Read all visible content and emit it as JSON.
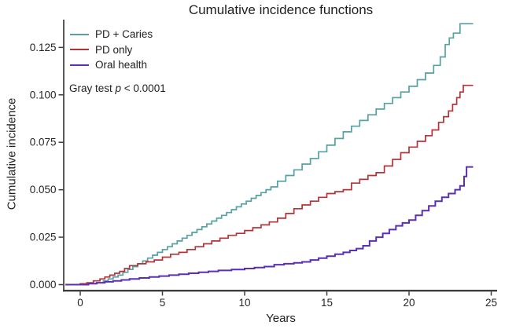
{
  "title": "Cumulative incidence functions",
  "y_axis_label": "Cumulative incidence",
  "x_axis_label": "Years",
  "annotation": {
    "prefix": "Gray test ",
    "stat": "p",
    "suffix": " < 0.0001"
  },
  "legend": {
    "items": [
      {
        "label": "PD + Caries",
        "color": "#55a1a3"
      },
      {
        "label": "PD only",
        "color": "#b23439"
      },
      {
        "label": "Oral health",
        "color": "#5b2fb5"
      }
    ]
  },
  "axis_color": "#3d3d3d",
  "tick_text_color": "#262626",
  "chart_data": {
    "type": "line",
    "subtype": "step-cumulative-incidence",
    "title": "Cumulative incidence functions",
    "xlabel": "Years",
    "ylabel": "Cumulative incidence",
    "x_ticks": [
      0,
      5,
      10,
      15,
      20,
      25
    ],
    "y_ticks": [
      0.0,
      0.025,
      0.05,
      0.075,
      0.1,
      0.125
    ],
    "y_tick_labels": [
      "0.000",
      "0.025",
      "0.050",
      "0.075",
      "0.100",
      "0.125"
    ],
    "xlim": [
      -1,
      25.4
    ],
    "ylim": [
      0,
      0.14
    ],
    "grid": false,
    "legend_position": "top-left-inside",
    "annotation_text": "Gray test p < 0.0001",
    "series": [
      {
        "name": "PD + Caries",
        "color": "#55a1a3",
        "points": [
          [
            -0.9,
            0
          ],
          [
            0,
            0
          ],
          [
            0.5,
            0.0005
          ],
          [
            1,
            0.001
          ],
          [
            1.4,
            0.002
          ],
          [
            1.7,
            0.003
          ],
          [
            2,
            0.004
          ],
          [
            2.3,
            0.005
          ],
          [
            2.6,
            0.0065
          ],
          [
            2.9,
            0.008
          ],
          [
            3.2,
            0.0095
          ],
          [
            3.5,
            0.011
          ],
          [
            3.8,
            0.0125
          ],
          [
            4.1,
            0.014
          ],
          [
            4.4,
            0.0155
          ],
          [
            4.7,
            0.017
          ],
          [
            5,
            0.0185
          ],
          [
            5.3,
            0.02
          ],
          [
            5.6,
            0.0215
          ],
          [
            5.9,
            0.023
          ],
          [
            6.2,
            0.0245
          ],
          [
            6.5,
            0.026
          ],
          [
            6.8,
            0.0275
          ],
          [
            7.1,
            0.029
          ],
          [
            7.4,
            0.0305
          ],
          [
            7.7,
            0.032
          ],
          [
            8,
            0.0335
          ],
          [
            8.3,
            0.035
          ],
          [
            8.6,
            0.0365
          ],
          [
            8.9,
            0.038
          ],
          [
            9.2,
            0.0395
          ],
          [
            9.5,
            0.041
          ],
          [
            9.8,
            0.0425
          ],
          [
            10.1,
            0.044
          ],
          [
            10.4,
            0.0455
          ],
          [
            10.7,
            0.047
          ],
          [
            11,
            0.0485
          ],
          [
            11.3,
            0.05
          ],
          [
            11.6,
            0.0515
          ],
          [
            12,
            0.0545
          ],
          [
            12.5,
            0.0575
          ],
          [
            13,
            0.0605
          ],
          [
            13.5,
            0.0635
          ],
          [
            14,
            0.0665
          ],
          [
            14.5,
            0.07
          ],
          [
            15,
            0.0735
          ],
          [
            15.5,
            0.077
          ],
          [
            16,
            0.0805
          ],
          [
            16.5,
            0.0835
          ],
          [
            17,
            0.0865
          ],
          [
            17.5,
            0.0895
          ],
          [
            18,
            0.0925
          ],
          [
            18.5,
            0.0955
          ],
          [
            19,
            0.0985
          ],
          [
            19.5,
            0.1015
          ],
          [
            20,
            0.1045
          ],
          [
            20.5,
            0.108
          ],
          [
            21,
            0.1115
          ],
          [
            21.5,
            0.1155
          ],
          [
            21.9,
            0.12
          ],
          [
            22.2,
            0.1265
          ],
          [
            22.45,
            0.13
          ],
          [
            22.7,
            0.1325
          ],
          [
            23.1,
            0.1375
          ],
          [
            23.9,
            0.1375
          ]
        ]
      },
      {
        "name": "PD only",
        "color": "#b23439",
        "points": [
          [
            -0.9,
            0
          ],
          [
            0,
            0.0005
          ],
          [
            0.4,
            0.001
          ],
          [
            0.8,
            0.002
          ],
          [
            1.2,
            0.003
          ],
          [
            1.5,
            0.004
          ],
          [
            1.8,
            0.005
          ],
          [
            2.1,
            0.006
          ],
          [
            2.4,
            0.007
          ],
          [
            2.7,
            0.0085
          ],
          [
            3,
            0.01
          ],
          [
            3.5,
            0.011
          ],
          [
            4,
            0.012
          ],
          [
            4.5,
            0.013
          ],
          [
            5,
            0.0145
          ],
          [
            5.5,
            0.016
          ],
          [
            6,
            0.017
          ],
          [
            6.5,
            0.0185
          ],
          [
            7,
            0.02
          ],
          [
            7.5,
            0.0215
          ],
          [
            8,
            0.023
          ],
          [
            8.5,
            0.0245
          ],
          [
            9,
            0.026
          ],
          [
            9.5,
            0.027
          ],
          [
            10,
            0.0285
          ],
          [
            10.5,
            0.03
          ],
          [
            11,
            0.0315
          ],
          [
            11.5,
            0.033
          ],
          [
            12,
            0.035
          ],
          [
            12.5,
            0.0375
          ],
          [
            13,
            0.04
          ],
          [
            13.5,
            0.042
          ],
          [
            14,
            0.044
          ],
          [
            14.5,
            0.046
          ],
          [
            15,
            0.048
          ],
          [
            15.5,
            0.049
          ],
          [
            16,
            0.05
          ],
          [
            16.5,
            0.0535
          ],
          [
            17,
            0.0555
          ],
          [
            17.5,
            0.0575
          ],
          [
            18,
            0.059
          ],
          [
            18.5,
            0.0625
          ],
          [
            19,
            0.066
          ],
          [
            19.5,
            0.0695
          ],
          [
            20,
            0.0725
          ],
          [
            20.5,
            0.0755
          ],
          [
            21,
            0.0785
          ],
          [
            21.4,
            0.0815
          ],
          [
            21.8,
            0.0855
          ],
          [
            22.1,
            0.0885
          ],
          [
            22.4,
            0.0915
          ],
          [
            22.65,
            0.095
          ],
          [
            22.9,
            0.0985
          ],
          [
            23.1,
            0.1015
          ],
          [
            23.3,
            0.105
          ],
          [
            23.9,
            0.105
          ]
        ]
      },
      {
        "name": "Oral health",
        "color": "#5b2fb5",
        "points": [
          [
            -0.9,
            0
          ],
          [
            0,
            0
          ],
          [
            0.5,
            0.0005
          ],
          [
            1,
            0.001
          ],
          [
            1.5,
            0.0015
          ],
          [
            2,
            0.002
          ],
          [
            2.5,
            0.0025
          ],
          [
            3,
            0.003
          ],
          [
            3.6,
            0.0035
          ],
          [
            4.2,
            0.004
          ],
          [
            4.8,
            0.0045
          ],
          [
            5.4,
            0.005
          ],
          [
            6,
            0.0055
          ],
          [
            6.6,
            0.006
          ],
          [
            7.2,
            0.0065
          ],
          [
            7.8,
            0.007
          ],
          [
            8.4,
            0.0075
          ],
          [
            9.2,
            0.008
          ],
          [
            10,
            0.0085
          ],
          [
            10.6,
            0.009
          ],
          [
            11.2,
            0.0095
          ],
          [
            11.8,
            0.0105
          ],
          [
            12.4,
            0.011
          ],
          [
            13,
            0.0115
          ],
          [
            13.5,
            0.012
          ],
          [
            14,
            0.013
          ],
          [
            14.5,
            0.014
          ],
          [
            15,
            0.015
          ],
          [
            15.5,
            0.016
          ],
          [
            16,
            0.017
          ],
          [
            16.4,
            0.018
          ],
          [
            16.8,
            0.019
          ],
          [
            17.2,
            0.0205
          ],
          [
            17.6,
            0.023
          ],
          [
            18,
            0.025
          ],
          [
            18.4,
            0.027
          ],
          [
            18.8,
            0.029
          ],
          [
            19.2,
            0.031
          ],
          [
            19.6,
            0.0325
          ],
          [
            20,
            0.034
          ],
          [
            20.4,
            0.0365
          ],
          [
            20.8,
            0.039
          ],
          [
            21.2,
            0.0415
          ],
          [
            21.6,
            0.044
          ],
          [
            22,
            0.046
          ],
          [
            22.4,
            0.048
          ],
          [
            22.8,
            0.05
          ],
          [
            23.1,
            0.052
          ],
          [
            23.35,
            0.057
          ],
          [
            23.5,
            0.062
          ],
          [
            23.9,
            0.062
          ]
        ]
      }
    ]
  }
}
